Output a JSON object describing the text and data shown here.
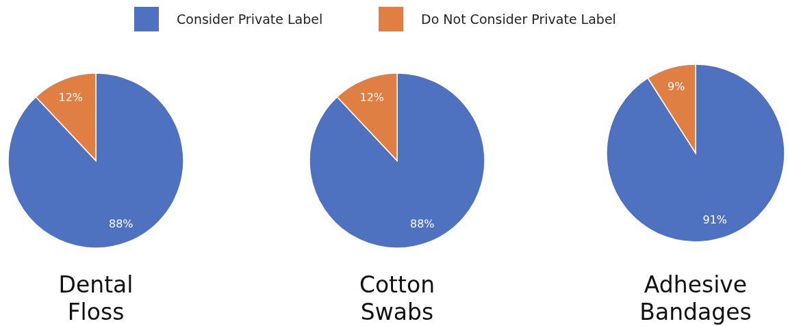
{
  "chart_data": [
    {
      "type": "pie",
      "title": "Dental Floss",
      "categories": [
        "Consider Private Label",
        "Do Not Consider Private Label"
      ],
      "values": [
        88,
        12
      ],
      "colors": [
        "#4e72c0",
        "#e07f43"
      ],
      "value_labels": [
        "88%",
        "12%"
      ],
      "legend": "top"
    },
    {
      "type": "pie",
      "title": "Cotton Swabs",
      "categories": [
        null,
        null
      ],
      "values": [
        88,
        12
      ],
      "colors": [
        "#4e72c0",
        "#e07f43"
      ],
      "value_labels": [
        "88%",
        "12%"
      ]
    },
    {
      "type": "pie",
      "title": "Adhesive Bandages",
      "categories": [
        null,
        null
      ],
      "values": [
        91,
        9
      ],
      "colors": [
        "#4e72c0",
        "#e07f43"
      ],
      "value_labels": [
        "91%",
        "9%"
      ]
    }
  ]
}
